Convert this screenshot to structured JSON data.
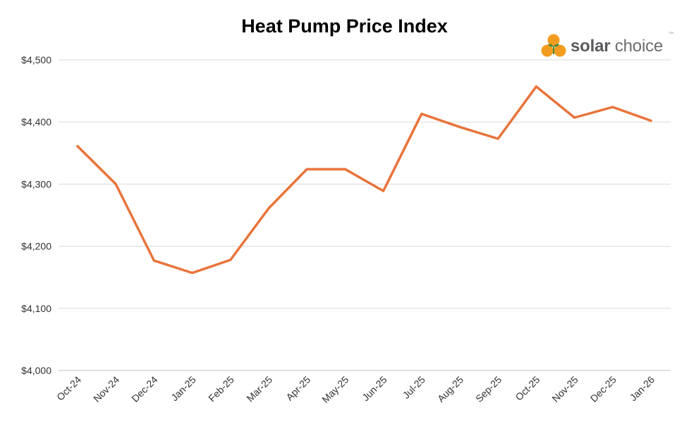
{
  "chart_data": {
    "type": "line",
    "title": "Heat Pump Price Index",
    "xlabel": "",
    "ylabel": "",
    "categories": [
      "Oct-24",
      "Nov-24",
      "Dec-24",
      "Jan-25",
      "Feb-25",
      "Mar-25",
      "Apr-25",
      "May-25",
      "Jun-25",
      "Jul-25",
      "Aug-25",
      "Sep-25",
      "Oct-25",
      "Nov-25",
      "Dec-25",
      "Jan-26"
    ],
    "series": [
      {
        "values": [
          4361,
          4300,
          4177,
          4157,
          4178,
          4261,
          4324,
          4324,
          4289,
          4413,
          4392,
          4373,
          4457,
          4407,
          4424,
          4402
        ],
        "color": "#e8743b"
      }
    ],
    "ylim": [
      4000,
      4500
    ],
    "yticks": [
      4000,
      4100,
      4200,
      4300,
      4400,
      4500
    ],
    "ytick_labels": [
      "$4,000",
      "$4,100",
      "$4,200",
      "$4,300",
      "$4,400",
      "$4,500"
    ],
    "grid": "horizontal",
    "grid_color": "#d9d9d9",
    "legend": "none"
  },
  "logo": {
    "text_bold": "solar",
    "text_regular": " choice",
    "tm": "™",
    "colors": {
      "orange": "#f39c1f",
      "green": "#3f8a3a",
      "text": "#6c6d6f"
    }
  }
}
